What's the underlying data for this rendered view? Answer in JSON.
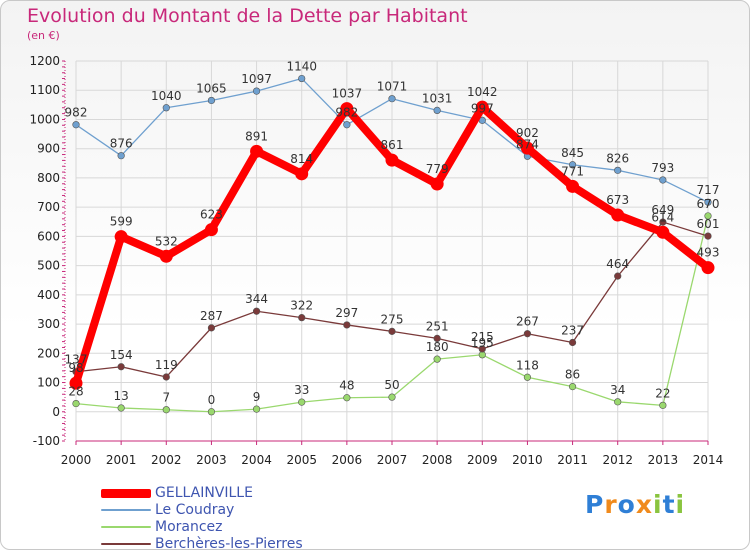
{
  "chart_data": {
    "type": "line",
    "title": "Evolution du Montant de la Dette par Habitant",
    "subtitle": "(en €)",
    "x": [
      2000,
      2001,
      2002,
      2003,
      2004,
      2005,
      2006,
      2007,
      2008,
      2009,
      2010,
      2011,
      2012,
      2013,
      2014
    ],
    "ylim": [
      -100,
      1200
    ],
    "yticks": [
      -100,
      0,
      100,
      200,
      300,
      400,
      500,
      600,
      700,
      800,
      900,
      1000,
      1100,
      1200
    ],
    "grid": true,
    "legend_position": "bottom-left",
    "series": [
      {
        "name": "GELLAINVILLE",
        "color": "#ff0000",
        "values": [
          98,
          599,
          532,
          623,
          891,
          814,
          1037,
          861,
          779,
          1042,
          902,
          771,
          673,
          614,
          493
        ]
      },
      {
        "name": "Le Coudray",
        "color": "#6fa0cf",
        "values": [
          982,
          876,
          1040,
          1065,
          1097,
          1140,
          982,
          1071,
          1031,
          997,
          874,
          845,
          826,
          793,
          717
        ]
      },
      {
        "name": "Morancez",
        "color": "#9ad86e",
        "values": [
          28,
          13,
          7,
          0,
          9,
          33,
          48,
          50,
          180,
          195,
          118,
          86,
          34,
          22,
          670
        ]
      },
      {
        "name": "Berchères-les-Pierres",
        "color": "#7a3a3a",
        "values": [
          137,
          154,
          119,
          287,
          344,
          322,
          297,
          275,
          251,
          215,
          267,
          237,
          464,
          649,
          601
        ]
      }
    ]
  },
  "logo": {
    "letters": [
      "P",
      "r",
      "o",
      "x",
      "i",
      "t",
      "i"
    ],
    "colors": [
      "#2f7fd6",
      "#f08a1c",
      "#2f7fd6",
      "#f08a1c",
      "#8ac43f",
      "#2f7fd6",
      "#8ac43f"
    ]
  }
}
